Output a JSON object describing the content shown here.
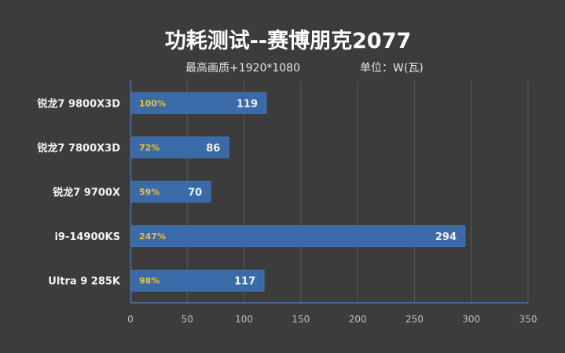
{
  "colors": {
    "background": "#3c3c3c",
    "bar": "#3b6aa8",
    "bar_edge": "#4d7dbb",
    "axis": "#4c74ac",
    "grid": "#5a5a5a",
    "percent_text": "#e6c23c",
    "value_text": "#f2f2f2"
  },
  "chart_data": {
    "type": "bar",
    "orientation": "horizontal",
    "title": "功耗测试--赛博朋克2077",
    "subtitle": "最高画质+1920*1080",
    "unit_label": "单位：W(瓦)",
    "xlabel": "",
    "ylabel": "",
    "categories": [
      "锐龙7 9800X3D",
      "锐龙7 7800X3D",
      "锐龙7 9700X",
      "i9-14900KS",
      "Ultra 9 285K"
    ],
    "values": [
      119,
      86,
      70,
      294,
      117
    ],
    "percent_labels": [
      "100%",
      "72%",
      "59%",
      "247%",
      "98%"
    ],
    "xlim": [
      0,
      350
    ],
    "xticks": [
      0,
      50,
      100,
      150,
      200,
      250,
      300,
      350
    ],
    "grid": true,
    "legend": "none"
  }
}
